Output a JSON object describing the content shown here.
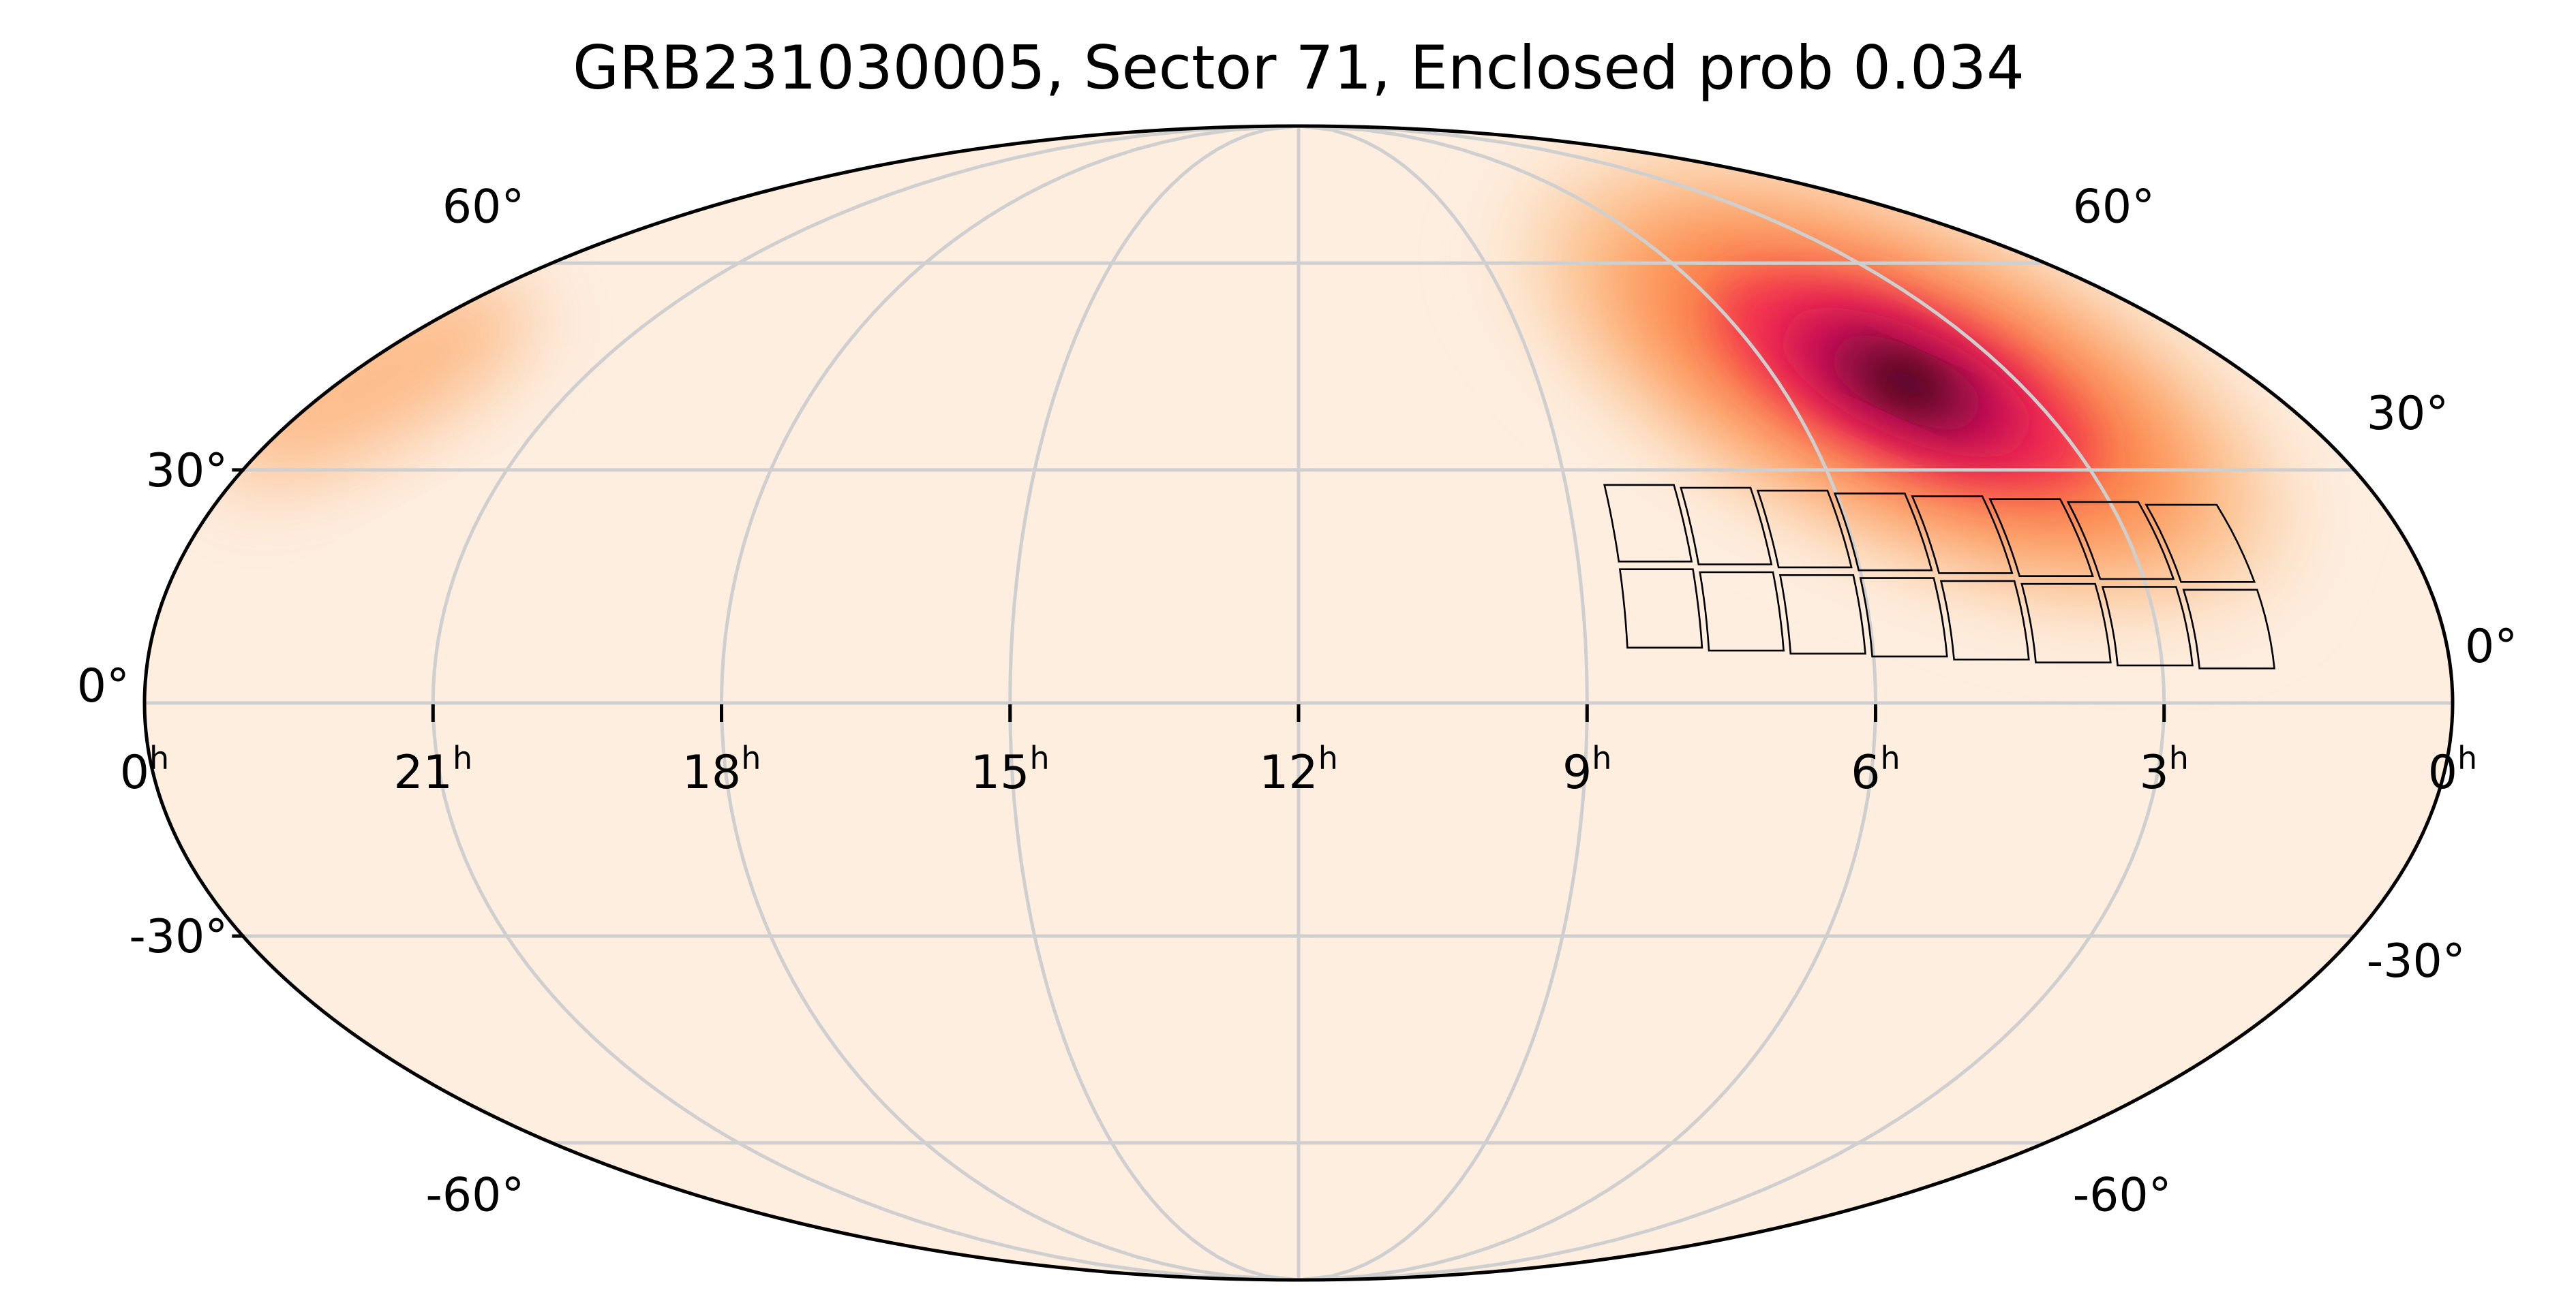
{
  "chart_data": {
    "type": "sky-map",
    "projection": "mollweide",
    "title": "GRB231030005, Sector 71, Enclosed prob 0.034",
    "ra_ticks": [
      {
        "h": 24,
        "label": "0",
        "sup": "h"
      },
      {
        "h": 21,
        "label": "21",
        "sup": "h"
      },
      {
        "h": 18,
        "label": "18",
        "sup": "h"
      },
      {
        "h": 15,
        "label": "15",
        "sup": "h"
      },
      {
        "h": 12,
        "label": "12",
        "sup": "h"
      },
      {
        "h": 9,
        "label": "9",
        "sup": "h"
      },
      {
        "h": 6,
        "label": "6",
        "sup": "h"
      },
      {
        "h": 3,
        "label": "3",
        "sup": "h"
      },
      {
        "h": 0,
        "label": "0",
        "sup": "h"
      }
    ],
    "dec_ticks_left": [
      "60°",
      "30°",
      "0°",
      "-30°",
      "-60°"
    ],
    "dec_ticks_right": [
      "60°",
      "30°",
      "0°",
      "-30°",
      "-60°"
    ],
    "colormap": [
      "#fdeee0",
      "#fcd8b6",
      "#fcae72",
      "#fb7b45",
      "#f2304f",
      "#cf0a56",
      "#8a0742",
      "#2e0010"
    ],
    "probability_map": {
      "peak_ra_h": 4.4,
      "peak_dec_deg": 42,
      "secondary_ra_h": 23.6,
      "secondary_dec_deg": 42
    },
    "ccd_footprint": {
      "ra_range_h": [
        1.8,
        8.6
      ],
      "dec_range_deg": [
        5,
        27
      ],
      "rows": 2,
      "columns": 8
    }
  }
}
